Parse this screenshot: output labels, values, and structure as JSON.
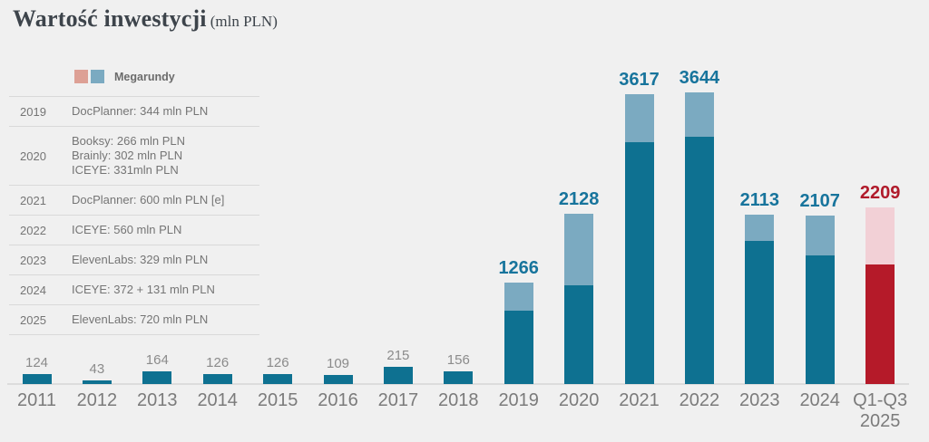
{
  "header": {
    "title": "Wartość inwestycji",
    "unit": "(mln PLN)"
  },
  "legend": {
    "label": "Megarundy",
    "swatches": [
      {
        "name": "megaround-pink",
        "color": "#dda095"
      },
      {
        "name": "megaround-blue",
        "color": "#7baac1"
      }
    ]
  },
  "mega_table": {
    "rows": [
      {
        "year": "2019",
        "entries": [
          "DocPlanner: 344 mln PLN"
        ]
      },
      {
        "year": "2020",
        "entries": [
          "Booksy: 266 mln PLN",
          "Brainly: 302 mln PLN",
          "ICEYE: 331mln PLN"
        ]
      },
      {
        "year": "2021",
        "entries": [
          "DocPlanner: 600 mln PLN [e]"
        ]
      },
      {
        "year": "2022",
        "entries": [
          "ICEYE: 560 mln PLN"
        ]
      },
      {
        "year": "2023",
        "entries": [
          "ElevenLabs: 329 mln PLN"
        ]
      },
      {
        "year": "2024",
        "entries": [
          "ICEYE: 372 + 131 mln PLN"
        ]
      },
      {
        "year": "2025",
        "entries": [
          "ElevenLabs: 720 mln PLN"
        ]
      }
    ]
  },
  "chart_data": {
    "type": "bar",
    "stacked": true,
    "title": "Wartość inwestycji (mln PLN)",
    "legend_entries": [
      "Megarundy"
    ],
    "legend_position": "top-left",
    "grid": false,
    "ylim": [
      0,
      3700
    ],
    "categories": [
      "2011",
      "2012",
      "2013",
      "2014",
      "2015",
      "2016",
      "2017",
      "2018",
      "2019",
      "2020",
      "2021",
      "2022",
      "2023",
      "2024",
      "Q1-Q3\n2025"
    ],
    "totals": [
      124,
      43,
      164,
      126,
      126,
      109,
      215,
      156,
      1266,
      2128,
      3617,
      3644,
      2113,
      2107,
      2209
    ],
    "series": [
      {
        "name": "base",
        "values": [
          124,
          43,
          164,
          126,
          126,
          109,
          215,
          156,
          922,
          1229,
          3017,
          3084,
          1784,
          1604,
          1489
        ]
      },
      {
        "name": "megarundy",
        "values": [
          0,
          0,
          0,
          0,
          0,
          0,
          0,
          0,
          344,
          899,
          600,
          560,
          329,
          503,
          720
        ]
      }
    ],
    "bars": [
      {
        "category": "2011",
        "total": 124,
        "mega": 0,
        "palette": "teal"
      },
      {
        "category": "2012",
        "total": 43,
        "mega": 0,
        "palette": "teal"
      },
      {
        "category": "2013",
        "total": 164,
        "mega": 0,
        "palette": "teal"
      },
      {
        "category": "2014",
        "total": 126,
        "mega": 0,
        "palette": "teal"
      },
      {
        "category": "2015",
        "total": 126,
        "mega": 0,
        "palette": "teal"
      },
      {
        "category": "2016",
        "total": 109,
        "mega": 0,
        "palette": "teal"
      },
      {
        "category": "2017",
        "total": 215,
        "mega": 0,
        "palette": "teal"
      },
      {
        "category": "2018",
        "total": 156,
        "mega": 0,
        "palette": "teal"
      },
      {
        "category": "2019",
        "total": 1266,
        "mega": 344,
        "palette": "teal"
      },
      {
        "category": "2020",
        "total": 2128,
        "mega": 899,
        "palette": "teal"
      },
      {
        "category": "2021",
        "total": 3617,
        "mega": 600,
        "palette": "teal"
      },
      {
        "category": "2022",
        "total": 3644,
        "mega": 560,
        "palette": "teal"
      },
      {
        "category": "2023",
        "total": 2113,
        "mega": 329,
        "palette": "teal"
      },
      {
        "category": "2024",
        "total": 2107,
        "mega": 503,
        "palette": "teal"
      },
      {
        "category": "Q1-Q3\n2025",
        "total": 2209,
        "mega": 720,
        "palette": "red"
      }
    ],
    "colors": {
      "bar_teal_dark": "#0e7191",
      "bar_teal_light": "#7baac1",
      "bar_red_dark": "#b51a29",
      "bar_red_light": "#f2d0d6",
      "label_teal": "#17749c",
      "label_red": "#b01b2b",
      "label_gray": "#8b8b8b",
      "background": "#f0f0f0"
    }
  }
}
